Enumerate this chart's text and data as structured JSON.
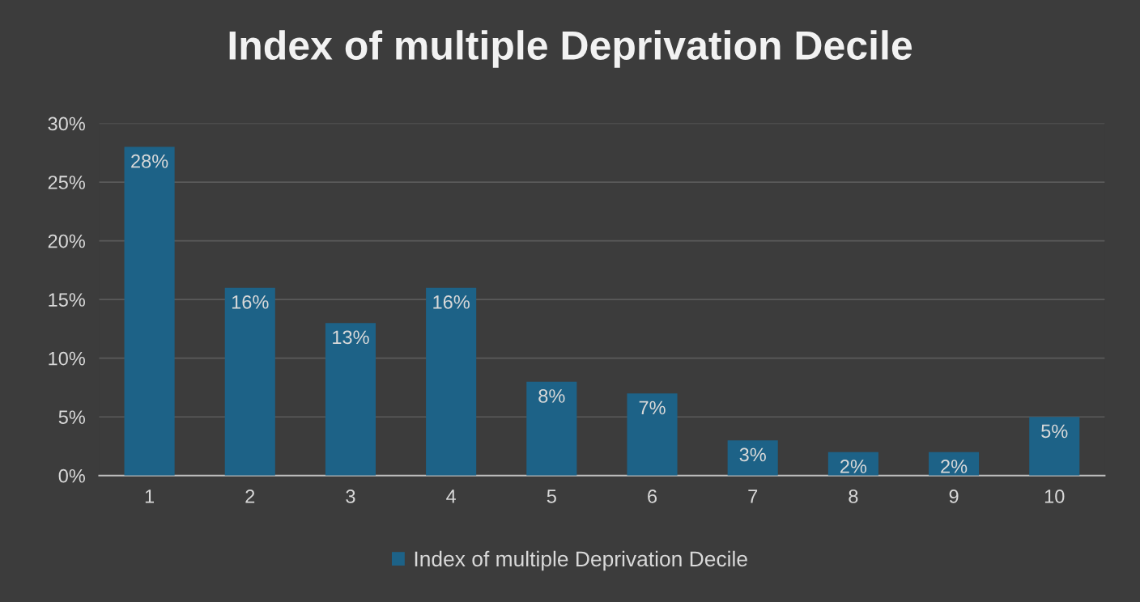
{
  "chart_data": {
    "type": "bar",
    "title": "Index of multiple Deprivation Decile",
    "categories": [
      "1",
      "2",
      "3",
      "4",
      "5",
      "6",
      "7",
      "8",
      "9",
      "10"
    ],
    "series": [
      {
        "name": "Index of multiple Deprivation Decile",
        "color": "#1d6287",
        "values": [
          28,
          16,
          13,
          16,
          8,
          7,
          3,
          2,
          2,
          5
        ],
        "value_labels": [
          "28%",
          "16%",
          "13%",
          "16%",
          "8%",
          "7%",
          "3%",
          "2%",
          "2%",
          "5%"
        ]
      }
    ],
    "ylim": [
      0,
      30
    ],
    "yticks": [
      {
        "value": 0,
        "label": "0%"
      },
      {
        "value": 5,
        "label": "5%"
      },
      {
        "value": 10,
        "label": "10%"
      },
      {
        "value": 15,
        "label": "15%"
      },
      {
        "value": 20,
        "label": "20%"
      },
      {
        "value": 25,
        "label": "25%"
      },
      {
        "value": 30,
        "label": "30%"
      }
    ],
    "grid": "y",
    "legend": "bottom"
  }
}
